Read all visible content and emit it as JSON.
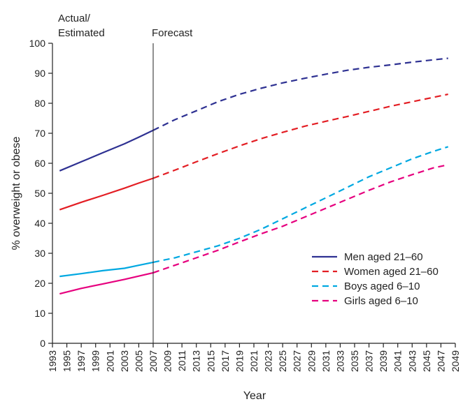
{
  "chart_data": {
    "type": "line",
    "xlabel": "Year",
    "ylabel": "% overweight or obese",
    "xlim": [
      1993,
      2049
    ],
    "ylim": [
      0,
      100
    ],
    "x_ticks": [
      1993,
      1995,
      1997,
      1999,
      2001,
      2003,
      2005,
      2007,
      2009,
      2011,
      2013,
      2015,
      2017,
      2019,
      2021,
      2023,
      2025,
      2027,
      2029,
      2031,
      2033,
      2035,
      2037,
      2039,
      2041,
      2043,
      2045,
      2047,
      2049
    ],
    "y_ticks": [
      0,
      10,
      20,
      30,
      40,
      50,
      60,
      70,
      80,
      90,
      100
    ],
    "divider_year": 2007,
    "region_labels": {
      "actual_line1": "Actual/",
      "actual_line2": "Estimated",
      "forecast": "Forecast"
    },
    "legend_position": "bottom-right",
    "series": [
      {
        "name": "Men aged 21–60",
        "color": "#2e3192",
        "actual": {
          "x": [
            1994,
            1997,
            2000,
            2003,
            2005,
            2007
          ],
          "y": [
            57.5,
            60.5,
            63.5,
            66.5,
            68.7,
            71
          ]
        },
        "forecast": {
          "x": [
            2007,
            2010,
            2013,
            2016,
            2019,
            2022,
            2025,
            2028,
            2031,
            2034,
            2037,
            2040,
            2043,
            2046,
            2048
          ],
          "y": [
            71,
            74.5,
            77.5,
            80.5,
            83,
            85,
            86.8,
            88.3,
            89.7,
            91,
            92,
            92.8,
            93.7,
            94.5,
            95
          ]
        }
      },
      {
        "name": "Women aged 21–60",
        "color": "#e31e24",
        "actual": {
          "x": [
            1994,
            1997,
            2000,
            2003,
            2005,
            2007
          ],
          "y": [
            44.5,
            47,
            49.3,
            51.7,
            53.4,
            55
          ]
        },
        "forecast": {
          "x": [
            2007,
            2010,
            2013,
            2016,
            2019,
            2022,
            2025,
            2028,
            2031,
            2034,
            2037,
            2040,
            2043,
            2046,
            2048
          ],
          "y": [
            55,
            57.7,
            60.5,
            63.2,
            65.8,
            68.2,
            70.3,
            72.3,
            74,
            75.6,
            77.3,
            79,
            80.5,
            82,
            83
          ]
        }
      },
      {
        "name": "Boys aged 6–10",
        "color": "#00a8e1",
        "actual": {
          "x": [
            1994,
            1997,
            2000,
            2003,
            2005,
            2007
          ],
          "y": [
            22.3,
            23.2,
            24.2,
            25,
            26,
            27
          ]
        },
        "forecast": {
          "x": [
            2007,
            2010,
            2013,
            2016,
            2019,
            2022,
            2025,
            2028,
            2031,
            2034,
            2037,
            2040,
            2043,
            2046,
            2048
          ],
          "y": [
            27,
            28.5,
            30.5,
            32.5,
            35,
            38,
            41.5,
            45,
            48.5,
            52,
            55.5,
            58.5,
            61.5,
            64,
            65.5
          ]
        }
      },
      {
        "name": "Girls aged 6–10",
        "color": "#e6007e",
        "actual": {
          "x": [
            1994,
            1997,
            2000,
            2003,
            2005,
            2007
          ],
          "y": [
            16.5,
            18.3,
            19.8,
            21.3,
            22.4,
            23.5
          ]
        },
        "forecast": {
          "x": [
            2007,
            2010,
            2013,
            2016,
            2019,
            2022,
            2025,
            2028,
            2031,
            2034,
            2037,
            2040,
            2043,
            2046,
            2048
          ],
          "y": [
            23.5,
            26,
            28.5,
            31,
            33.8,
            36.5,
            39,
            42,
            45,
            48,
            51,
            53.8,
            56.2,
            58.5,
            59.5
          ]
        }
      }
    ]
  }
}
